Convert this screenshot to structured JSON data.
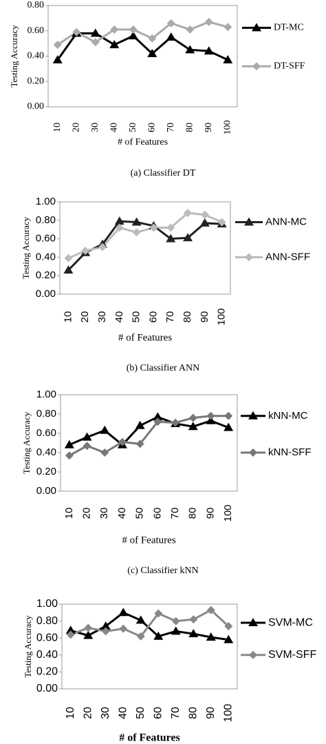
{
  "chart_data": [
    {
      "type": "line",
      "caption": "(a) Classifier DT",
      "xlabel": "# of Features",
      "ylabel": "Testing Accuracy",
      "categories": [
        "10",
        "20",
        "30",
        "40",
        "50",
        "60",
        "70",
        "80",
        "90",
        "100"
      ],
      "series": [
        {
          "name": "DT-MC",
          "color": "#000000",
          "marker": "triangle",
          "values": [
            0.37,
            0.58,
            0.58,
            0.49,
            0.56,
            0.42,
            0.55,
            0.45,
            0.44,
            0.37
          ]
        },
        {
          "name": "DT-SFF",
          "color": "#aaaaaa",
          "marker": "diamond",
          "values": [
            0.49,
            0.59,
            0.51,
            0.61,
            0.61,
            0.54,
            0.66,
            0.61,
            0.67,
            0.63
          ]
        }
      ],
      "ylim": [
        0,
        0.8
      ],
      "yticks": [
        {
          "value": 0,
          "label": "0.00"
        },
        {
          "value": 0.2,
          "label": "0.20"
        },
        {
          "value": 0.4,
          "label": "0.40"
        },
        {
          "value": 0.6,
          "label": "0.60"
        },
        {
          "value": 0.8,
          "label": "0.80"
        }
      ],
      "legend": "right"
    },
    {
      "type": "line",
      "caption": "(b) Classifier ANN",
      "xlabel": "# of Features",
      "ylabel": "Testing Accuracy",
      "categories": [
        "10",
        "20",
        "30",
        "40",
        "50",
        "60",
        "70",
        "80",
        "90",
        "100"
      ],
      "series": [
        {
          "name": "ANN-MC",
          "color": "#222222",
          "marker": "triangle",
          "values": [
            0.26,
            0.45,
            0.54,
            0.79,
            0.78,
            0.74,
            0.6,
            0.61,
            0.77,
            0.76
          ]
        },
        {
          "name": "ANN-SFF",
          "color": "#bbbbbb",
          "marker": "diamond",
          "values": [
            0.39,
            0.47,
            0.51,
            0.72,
            0.67,
            0.72,
            0.72,
            0.88,
            0.86,
            0.78
          ]
        }
      ],
      "ylim": [
        0,
        1
      ],
      "yticks": [
        {
          "value": 0,
          "label": "0.00"
        },
        {
          "value": 0.2,
          "label": "0.20"
        },
        {
          "value": 0.4,
          "label": "0.40"
        },
        {
          "value": 0.6,
          "label": "0.60"
        },
        {
          "value": 0.8,
          "label": "0.80"
        },
        {
          "value": 1,
          "label": "1.00"
        }
      ],
      "legend": "right"
    },
    {
      "type": "line",
      "caption": "(c) Classifier kNN",
      "xlabel": "# of Features",
      "ylabel": "Testing Accuracy",
      "categories": [
        "10",
        "20",
        "30",
        "40",
        "50",
        "60",
        "70",
        "80",
        "90",
        "100"
      ],
      "series": [
        {
          "name": "kNN-MC",
          "color": "#000000",
          "marker": "triangle",
          "values": [
            0.48,
            0.56,
            0.63,
            0.48,
            0.68,
            0.77,
            0.7,
            0.67,
            0.73,
            0.66
          ]
        },
        {
          "name": "kNN-SFF",
          "color": "#777777",
          "marker": "diamond",
          "values": [
            0.37,
            0.47,
            0.4,
            0.51,
            0.49,
            0.72,
            0.71,
            0.76,
            0.78,
            0.78
          ]
        }
      ],
      "ylim": [
        0,
        1
      ],
      "yticks": [
        {
          "value": 0,
          "label": "0.00"
        },
        {
          "value": 0.2,
          "label": "0.20"
        },
        {
          "value": 0.4,
          "label": "0.40"
        },
        {
          "value": 0.6,
          "label": "0.60"
        },
        {
          "value": 0.8,
          "label": "0.80"
        },
        {
          "value": 1,
          "label": "1.00"
        }
      ],
      "legend": "right"
    },
    {
      "type": "line",
      "xlabel": "# of Features",
      "ylabel": "Testing Accuracy",
      "categories": [
        "10",
        "20",
        "30",
        "40",
        "50",
        "60",
        "70",
        "80",
        "90",
        "100"
      ],
      "series": [
        {
          "name": "SVM-MC",
          "color": "#000000",
          "marker": "triangle",
          "values": [
            0.69,
            0.63,
            0.74,
            0.9,
            0.81,
            0.62,
            0.68,
            0.65,
            0.61,
            0.58
          ]
        },
        {
          "name": "SVM-SFF",
          "color": "#888888",
          "marker": "diamond",
          "values": [
            0.64,
            0.72,
            0.68,
            0.71,
            0.62,
            0.89,
            0.8,
            0.82,
            0.93,
            0.74
          ]
        }
      ],
      "ylim": [
        0,
        1
      ],
      "yticks": [
        {
          "value": 0,
          "label": "0.00"
        },
        {
          "value": 0.2,
          "label": "0.20"
        },
        {
          "value": 0.4,
          "label": "0.40"
        },
        {
          "value": 0.6,
          "label": "0.60"
        },
        {
          "value": 0.8,
          "label": "0.80"
        },
        {
          "value": 1,
          "label": "1.00"
        }
      ],
      "legend": "right"
    }
  ]
}
